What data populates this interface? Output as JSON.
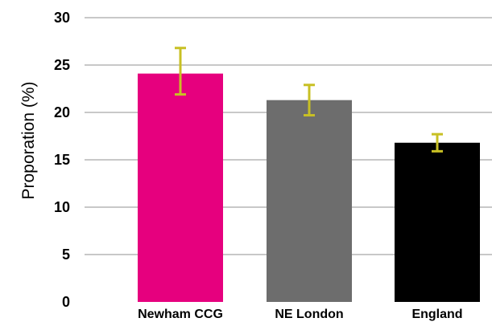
{
  "chart_data": {
    "type": "bar",
    "title": "",
    "xlabel": "",
    "ylabel": "Proporation (%)",
    "ylim": [
      0,
      30
    ],
    "yticks": [
      "0",
      "5",
      "10",
      "15",
      "20",
      "25",
      "30"
    ],
    "grid": true,
    "categories": [
      "Newham CCG",
      "NE London",
      "England"
    ],
    "values": [
      24.1,
      21.3,
      16.8
    ],
    "error_bars": [
      {
        "low": 21.9,
        "high": 26.8
      },
      {
        "low": 19.7,
        "high": 22.9
      },
      {
        "low": 15.9,
        "high": 17.7
      }
    ],
    "colors": {
      "bars": [
        "#e6007e",
        "#6d6d6d",
        "#000000"
      ],
      "error_bars": "#c8c024",
      "grid": "#c8c8c8"
    }
  }
}
